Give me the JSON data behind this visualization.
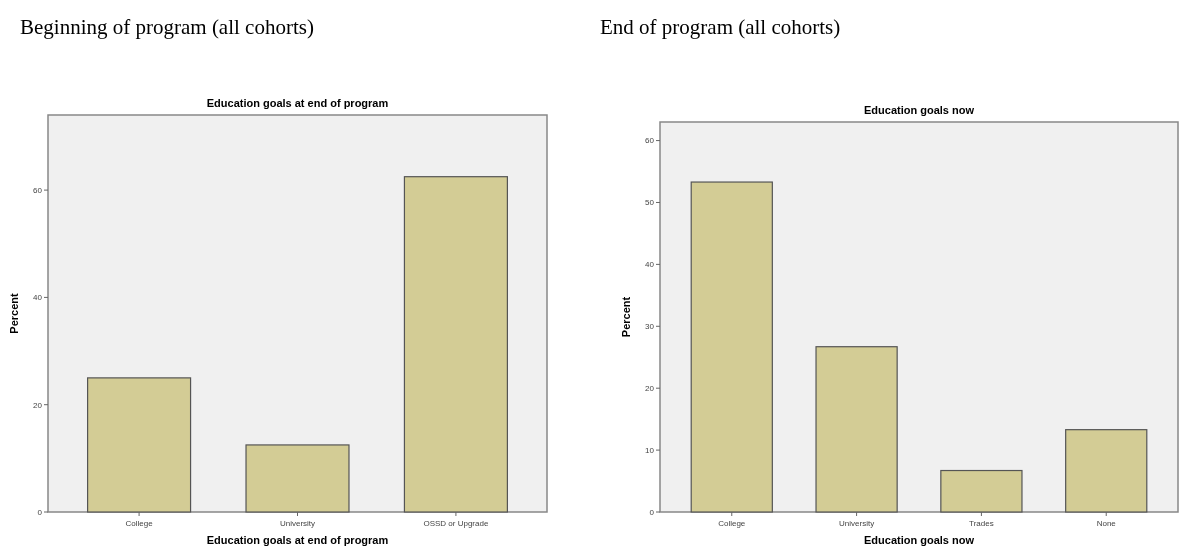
{
  "chart_data": [
    {
      "type": "bar",
      "title": "Beginning of program (all cohorts)",
      "subtitle": "Education goals at end of program",
      "xlabel": "Education goals at end of program",
      "ylabel": "Percent",
      "categories": [
        "College",
        "University",
        "OSSD or Upgrade"
      ],
      "values": [
        25,
        12.5,
        62.5
      ],
      "color": "#d3cc95",
      "ylim": [
        0,
        74
      ],
      "yticks": [
        0,
        20,
        40,
        60
      ],
      "grid": false
    },
    {
      "type": "bar",
      "title": "End of program (all cohorts)",
      "subtitle": "Education goals now",
      "xlabel": "Education goals now",
      "ylabel": "Percent",
      "categories": [
        "College",
        "University",
        "Trades",
        "None"
      ],
      "values": [
        53.3,
        26.7,
        6.7,
        13.3
      ],
      "color": "#d3cc95",
      "ylim": [
        0,
        63
      ],
      "yticks": [
        0,
        10,
        20,
        30,
        40,
        50,
        60
      ],
      "grid": false
    }
  ]
}
